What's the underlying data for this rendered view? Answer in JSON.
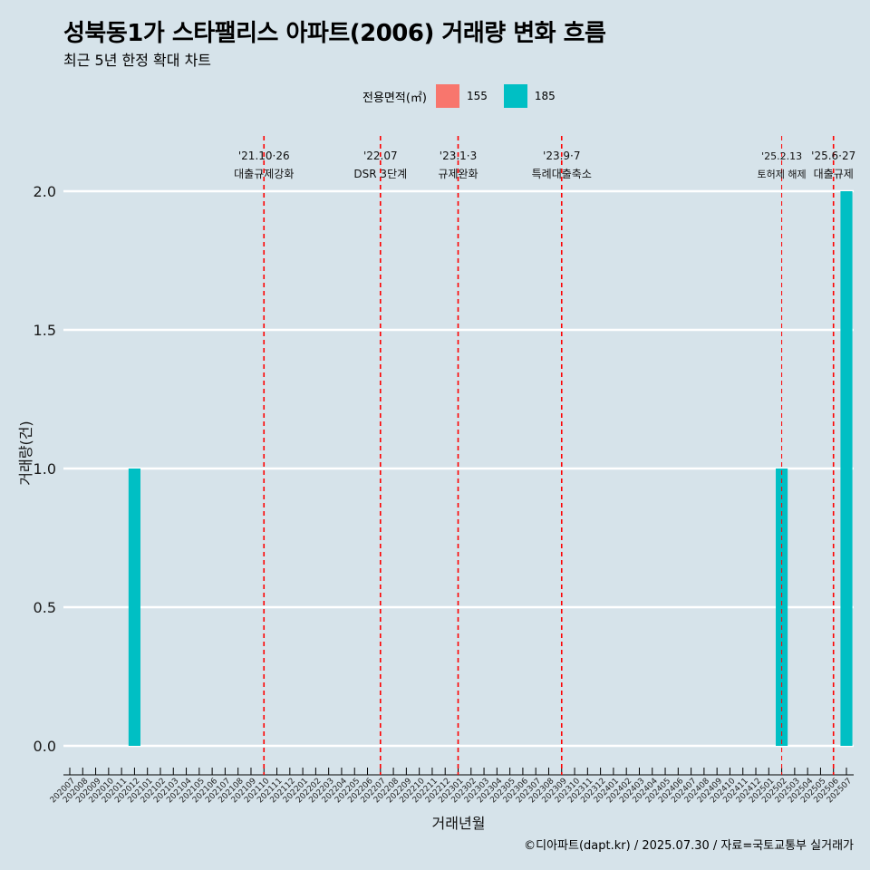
{
  "chart_data": {
    "type": "bar",
    "title": "성북동1가 스타팰리스 아파트(2006) 거래량 변화 흐름",
    "subtitle": "최근 5년 한정 확대 차트",
    "xlabel": "거래년월",
    "ylabel": "거래량(건)",
    "ylim": [
      0,
      2
    ],
    "yticks": [
      "0.0",
      "0.5",
      "1.0",
      "1.5",
      "2.0"
    ],
    "grid": "horizontal",
    "legend": {
      "title": "전용면적(㎡)",
      "position": "top",
      "entries": [
        {
          "label": "155",
          "color": "#f8766d"
        },
        {
          "label": "185",
          "color": "#00bfc4"
        }
      ]
    },
    "categories": [
      "202007",
      "202008",
      "202009",
      "202010",
      "202011",
      "202012",
      "202101",
      "202102",
      "202103",
      "202104",
      "202105",
      "202106",
      "202107",
      "202108",
      "202109",
      "202110",
      "202111",
      "202112",
      "202201",
      "202202",
      "202203",
      "202204",
      "202205",
      "202206",
      "202207",
      "202208",
      "202209",
      "202210",
      "202211",
      "202212",
      "202301",
      "202302",
      "202303",
      "202304",
      "202305",
      "202306",
      "202307",
      "202308",
      "202309",
      "202310",
      "202311",
      "202312",
      "202401",
      "202402",
      "202403",
      "202404",
      "202405",
      "202406",
      "202407",
      "202408",
      "202409",
      "202410",
      "202411",
      "202412",
      "202501",
      "202502",
      "202503",
      "202504",
      "202505",
      "202506",
      "202507"
    ],
    "series": [
      {
        "name": "185",
        "color": "#00bfc4",
        "values": [
          0,
          0,
          0,
          0,
          0,
          1,
          0,
          0,
          0,
          0,
          0,
          0,
          0,
          0,
          0,
          0,
          0,
          0,
          0,
          0,
          0,
          0,
          0,
          0,
          0,
          0,
          0,
          0,
          0,
          0,
          0,
          0,
          0,
          0,
          0,
          0,
          0,
          0,
          0,
          0,
          0,
          0,
          0,
          0,
          0,
          0,
          0,
          0,
          0,
          0,
          0,
          0,
          0,
          0,
          0,
          1,
          0,
          0,
          0,
          0,
          2
        ]
      }
    ],
    "annotations": [
      {
        "x": "202110",
        "date": "'21.10·26",
        "label": "대출규제강화"
      },
      {
        "x": "202207",
        "date": "'22.07",
        "label": "DSR 3단계"
      },
      {
        "x": "202301",
        "date": "'23.1·3",
        "label": "규제완화"
      },
      {
        "x": "202309",
        "date": "'23.9·7",
        "label": "특례대출축소"
      },
      {
        "x": "202502",
        "date": "'25.2.13",
        "label": "토허제 해제"
      },
      {
        "x": "202506",
        "date": "'25.6·27",
        "label": "대출규제"
      }
    ]
  },
  "footer": {
    "caption": "©디아파트(dapt.kr) / 2025.07.30 / 자료=국토교통부 실거래가"
  }
}
